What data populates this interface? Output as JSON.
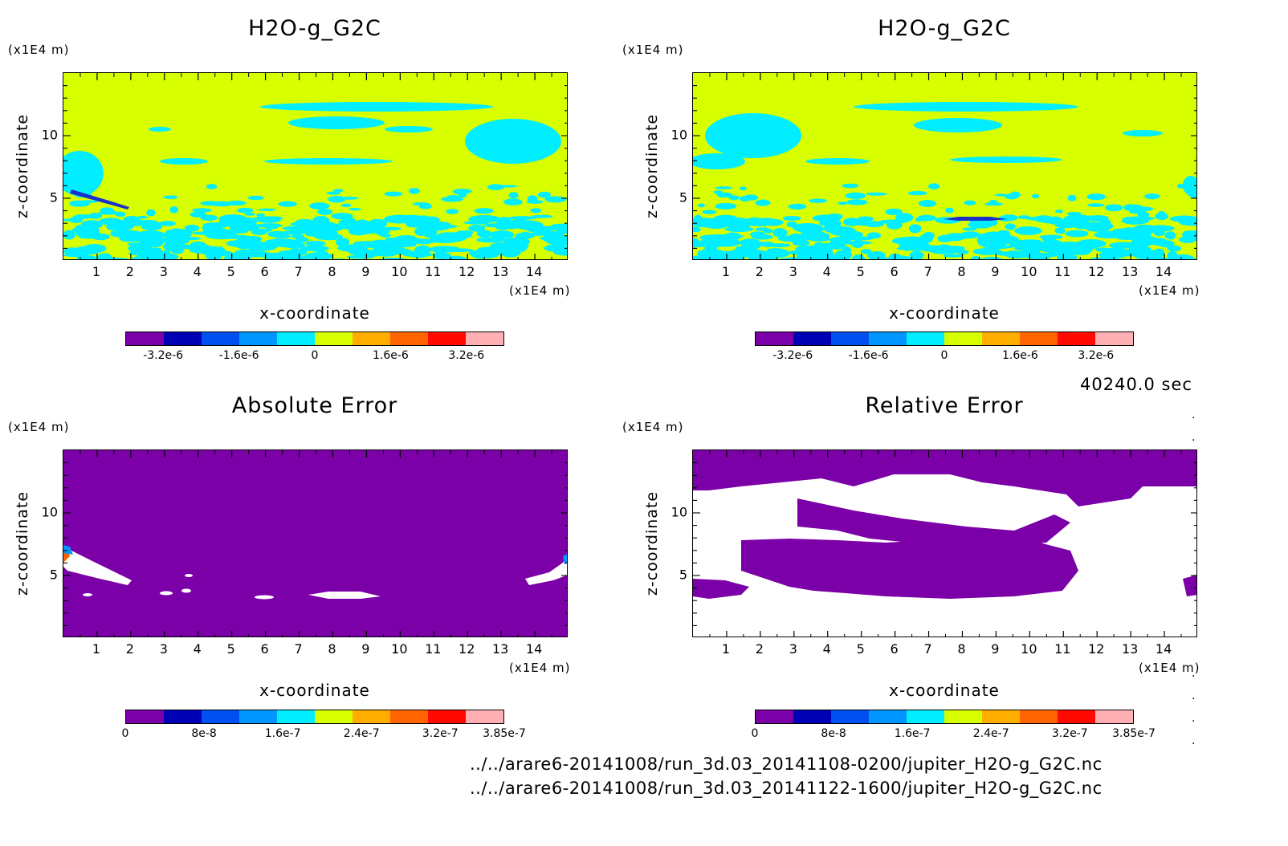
{
  "colors": {
    "bg_purple": "#7b00a8",
    "yellow_green": "#d8ff00",
    "cyan": "#00eeff",
    "white": "#ffffff",
    "dark_blue": "#1a30c8"
  },
  "time": "40240.0 sec",
  "files": [
    "../../arare6-20141008/run_3d.03_20141108-0200/jupiter_H2O-g_G2C.nc",
    "../../arare6-20141008/run_3d.03_20141122-1600/jupiter_H2O-g_G2C.nc"
  ],
  "chart_data": [
    {
      "type": "heatmap",
      "title": "H2O-g_G2C",
      "xlabel": "x-coordinate",
      "ylabel": "z-coordinate",
      "x_unit": "(x1E4 m)",
      "y_unit": "(x1E4 m)",
      "xlim": [
        0,
        15
      ],
      "ylim": [
        0,
        15
      ],
      "x_ticks": [
        "1",
        "2",
        "3",
        "4",
        "5",
        "6",
        "7",
        "8",
        "9",
        "10",
        "11",
        "12",
        "13",
        "14"
      ],
      "y_ticks": [
        "5",
        "10"
      ],
      "colorbar": {
        "colors": [
          "#7b00a8",
          "#0000b4",
          "#0050f0",
          "#0096ff",
          "#00eeff",
          "#d8ff00",
          "#ffae00",
          "#ff6400",
          "#ff0a00",
          "#ffb0b4"
        ],
        "tick_labels": [
          "-3.2e-6",
          "-1.6e-6",
          "0",
          "1.6e-6",
          "3.2e-6"
        ],
        "tick_values": [
          -3.2e-06,
          -1.6e-06,
          0,
          1.6e-06,
          3.2e-06
        ]
      }
    },
    {
      "type": "heatmap",
      "title": "H2O-g_G2C",
      "xlabel": "x-coordinate",
      "ylabel": "z-coordinate",
      "x_unit": "(x1E4 m)",
      "y_unit": "(x1E4 m)",
      "xlim": [
        0,
        15
      ],
      "ylim": [
        0,
        15
      ],
      "x_ticks": [
        "1",
        "2",
        "3",
        "4",
        "5",
        "6",
        "7",
        "8",
        "9",
        "10",
        "11",
        "12",
        "13",
        "14"
      ],
      "y_ticks": [
        "5",
        "10"
      ],
      "colorbar": {
        "colors": [
          "#7b00a8",
          "#0000b4",
          "#0050f0",
          "#0096ff",
          "#00eeff",
          "#d8ff00",
          "#ffae00",
          "#ff6400",
          "#ff0a00",
          "#ffb0b4"
        ],
        "tick_labels": [
          "-3.2e-6",
          "-1.6e-6",
          "0",
          "1.6e-6",
          "3.2e-6"
        ],
        "tick_values": [
          -3.2e-06,
          -1.6e-06,
          0,
          1.6e-06,
          3.2e-06
        ]
      }
    },
    {
      "type": "heatmap",
      "title": "Absolute Error",
      "xlabel": "x-coordinate",
      "ylabel": "z-coordinate",
      "x_unit": "(x1E4 m)",
      "y_unit": "(x1E4 m)",
      "xlim": [
        0,
        15
      ],
      "ylim": [
        0,
        15
      ],
      "x_ticks": [
        "1",
        "2",
        "3",
        "4",
        "5",
        "6",
        "7",
        "8",
        "9",
        "10",
        "11",
        "12",
        "13",
        "14"
      ],
      "y_ticks": [
        "5",
        "10"
      ],
      "colorbar": {
        "colors": [
          "#7b00a8",
          "#0000b4",
          "#0050f0",
          "#0096ff",
          "#00eeff",
          "#d8ff00",
          "#ffae00",
          "#ff6400",
          "#ff0a00",
          "#ffb0b4"
        ],
        "tick_labels": [
          "0",
          "8e-8",
          "1.6e-7",
          "2.4e-7",
          "3.2e-7",
          "3.85e-7"
        ],
        "tick_values": [
          0,
          8e-08,
          1.6e-07,
          2.4e-07,
          3.2e-07,
          3.85e-07
        ]
      }
    },
    {
      "type": "heatmap",
      "title": "Relative Error",
      "xlabel": "x-coordinate",
      "ylabel": "z-coordinate",
      "x_unit": "(x1E4 m)",
      "y_unit": "(x1E4 m)",
      "xlim": [
        0,
        15
      ],
      "ylim": [
        0,
        15
      ],
      "x_ticks": [
        "1",
        "2",
        "3",
        "4",
        "5",
        "6",
        "7",
        "8",
        "9",
        "10",
        "11",
        "12",
        "13",
        "14"
      ],
      "y_ticks": [
        "5",
        "10"
      ],
      "colorbar": {
        "colors": [
          "#7b00a8",
          "#0000b4",
          "#0050f0",
          "#0096ff",
          "#00eeff",
          "#d8ff00",
          "#ffae00",
          "#ff6400",
          "#ff0a00",
          "#ffb0b4"
        ],
        "tick_labels": [
          "0",
          "8e-8",
          "1.6e-7",
          "2.4e-7",
          "3.2e-7",
          "3.85e-7"
        ],
        "tick_values": [
          0,
          8e-08,
          1.6e-07,
          2.4e-07,
          3.2e-07,
          3.85e-07
        ]
      }
    }
  ]
}
